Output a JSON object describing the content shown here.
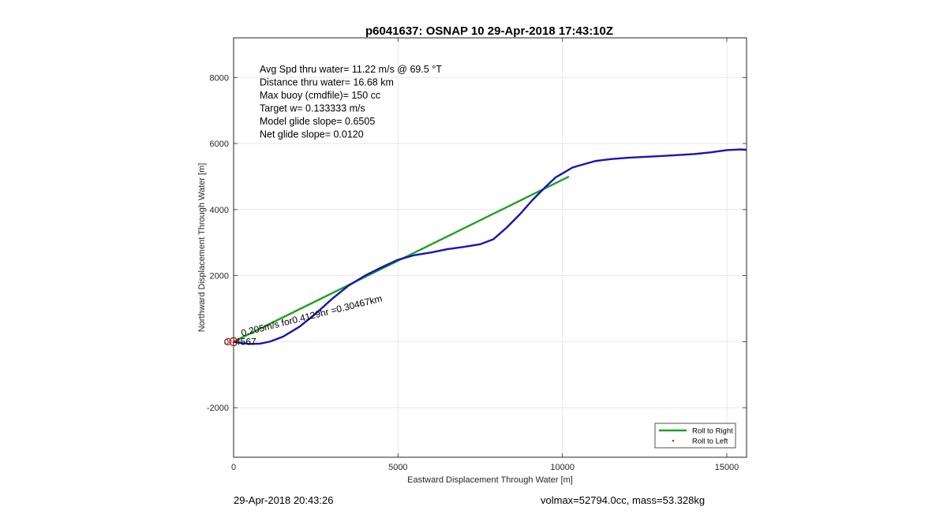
{
  "chart_data": {
    "type": "line",
    "title": "p6041637: OSNAP 10 29-Apr-2018 17:43:10Z",
    "xlabel": "Eastward Displacement Through Water [m]",
    "ylabel": "Northward Displacement Through Water [m]",
    "xlim": [
      0,
      15600
    ],
    "ylim": [
      -3500,
      9200
    ],
    "xticks": [
      0,
      5000,
      10000,
      15000
    ],
    "yticks": [
      -2000,
      0,
      2000,
      4000,
      6000,
      8000
    ],
    "grid": true,
    "legend_position": "bottom-right",
    "series": [
      {
        "name": "Roll to Right",
        "color": "#1ea11e",
        "kind": "line",
        "x": [
          0,
          10200
        ],
        "y": [
          0,
          5000
        ]
      },
      {
        "name": "",
        "color": "#1515b8",
        "kind": "line",
        "x": [
          0,
          300,
          500,
          800,
          1100,
          1500,
          2000,
          2500,
          3000,
          3500,
          4000,
          4500,
          5000,
          5500,
          6000,
          6500,
          7000,
          7500,
          7900,
          8300,
          8700,
          9100,
          9500,
          9800,
          10100,
          10300,
          10500,
          11000,
          11500,
          12000,
          13000,
          14000,
          14500,
          15000,
          15400,
          15600
        ],
        "y": [
          0,
          -50,
          -70,
          -60,
          0,
          150,
          450,
          850,
          1300,
          1700,
          2000,
          2250,
          2480,
          2620,
          2700,
          2800,
          2870,
          2950,
          3100,
          3450,
          3850,
          4300,
          4700,
          4980,
          5150,
          5270,
          5330,
          5470,
          5530,
          5570,
          5620,
          5680,
          5730,
          5800,
          5820,
          5810
        ]
      },
      {
        "name": "Roll to Left",
        "color": "#e02020",
        "kind": "marker",
        "x": [
          0
        ],
        "y": [
          -20
        ]
      }
    ],
    "annotations": [
      "Avg Spd thru water= 11.22 m/s @  69.5 °T",
      "Distance thru water= 16.68 km",
      "Max buoy (cmdfile)= 150 cc",
      "Target w= 0.133333 m/s",
      "Model glide slope= 0.6505",
      "Net glide slope= 0.0120"
    ],
    "rotated_annotation": "0.205m/s for0.4129hr =0.30467km",
    "origin_overlap_text": "4567",
    "footer_left": "29-Apr-2018 20:43:26",
    "footer_right": "volmax=52794.0cc, mass=53.328kg"
  }
}
